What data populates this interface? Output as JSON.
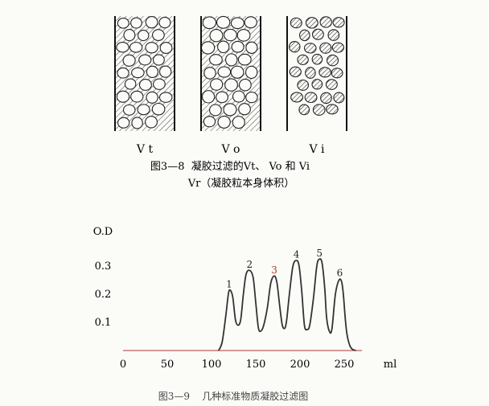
{
  "diagram": {
    "columns": [
      {
        "label": "V t",
        "fill": "hatched-with-beads"
      },
      {
        "label": "V o",
        "fill": "beads-on-hatched"
      },
      {
        "label": "V i",
        "fill": "hatched-beads-on-white"
      }
    ],
    "caption_line1": "图3—8  凝胶过滤的Vt、 Vo 和 Vi",
    "caption_line2": "Vr（凝胶粒本身体积）"
  },
  "chart_data": {
    "type": "line",
    "title": "",
    "caption": "图3—9    几种标准物质凝胶过滤图",
    "ylabel": "O.D",
    "xlabel": "ml",
    "x_ticks": [
      "0",
      "50",
      "100",
      "150",
      "200",
      "250"
    ],
    "x_tick_values": [
      0,
      50,
      100,
      150,
      200,
      250
    ],
    "y_ticks": [
      "0.1",
      "0.2",
      "0.3"
    ],
    "y_tick_values": [
      0.1,
      0.2,
      0.3
    ],
    "xlim": [
      0,
      270
    ],
    "ylim": [
      0,
      0.4
    ],
    "grid": false,
    "series": [
      {
        "x": [
          108,
          112,
          116,
          119,
          121,
          124,
          127,
          130,
          133,
          136,
          139,
          143,
          147,
          150,
          153,
          156,
          159,
          163,
          167,
          171,
          174,
          177,
          180,
          183,
          185,
          188,
          192,
          196,
          199,
          202,
          205,
          208,
          211,
          215,
          219,
          222,
          225,
          228,
          230,
          233,
          236,
          240,
          244,
          247,
          249,
          251,
          253,
          256,
          259,
          263
        ],
        "values": [
          0.0,
          0.03,
          0.12,
          0.2,
          0.215,
          0.19,
          0.11,
          0.09,
          0.11,
          0.2,
          0.27,
          0.285,
          0.26,
          0.17,
          0.08,
          0.07,
          0.09,
          0.15,
          0.24,
          0.265,
          0.24,
          0.16,
          0.09,
          0.08,
          0.11,
          0.2,
          0.3,
          0.32,
          0.3,
          0.21,
          0.09,
          0.075,
          0.09,
          0.18,
          0.3,
          0.325,
          0.31,
          0.22,
          0.12,
          0.07,
          0.075,
          0.2,
          0.25,
          0.245,
          0.2,
          0.12,
          0.06,
          0.02,
          0.005,
          0.0
        ],
        "color": "#333333"
      }
    ],
    "annotations": [
      {
        "text": "1",
        "x": 120,
        "y": 0.225,
        "color": "#222222"
      },
      {
        "text": "2",
        "x": 143,
        "y": 0.295,
        "color": "#222222"
      },
      {
        "text": "3",
        "x": 171,
        "y": 0.275,
        "color": "#b53434"
      },
      {
        "text": "4",
        "x": 196,
        "y": 0.33,
        "color": "#222222"
      },
      {
        "text": "5",
        "x": 222,
        "y": 0.335,
        "color": "#222222"
      },
      {
        "text": "6",
        "x": 245,
        "y": 0.265,
        "color": "#222222"
      }
    ],
    "baseline_color": "#b53434"
  }
}
